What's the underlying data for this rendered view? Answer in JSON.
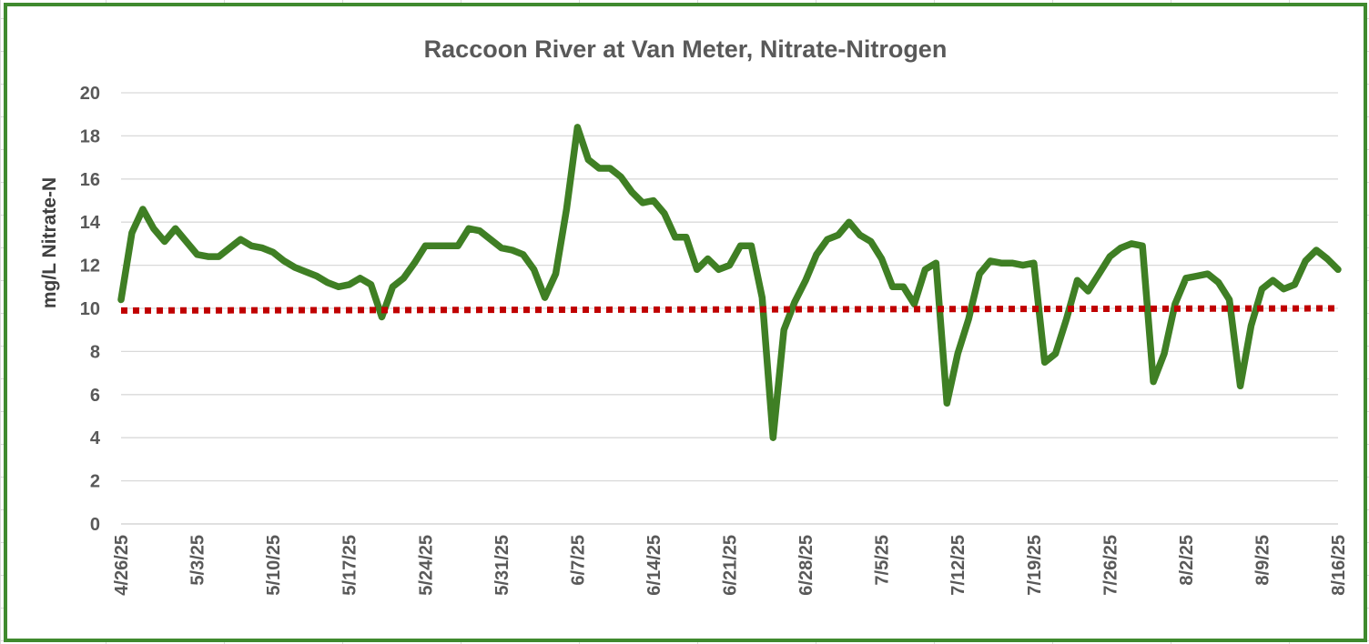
{
  "chart_data": {
    "type": "line",
    "title": "Raccoon River at Van Meter, Nitrate-Nitrogen",
    "xlabel": "",
    "ylabel": "mg/L Nitrate-N",
    "ylim": [
      0,
      20
    ],
    "yticks": [
      0,
      2,
      4,
      6,
      8,
      10,
      12,
      14,
      16,
      18,
      20
    ],
    "xlim": [
      "2025-04-26",
      "2025-08-16"
    ],
    "xtick_labels": [
      "4/26/25",
      "5/3/25",
      "5/10/25",
      "5/17/25",
      "5/24/25",
      "5/31/25",
      "6/7/25",
      "6/14/25",
      "6/21/25",
      "6/28/25",
      "7/5/25",
      "7/12/25",
      "7/19/25",
      "7/26/25",
      "8/2/25",
      "8/9/25",
      "8/16/25"
    ],
    "grid": "horizontal",
    "legend": "none",
    "series": [
      {
        "color": "#3f7f24",
        "style": "solid",
        "x": [
          "2025-04-26",
          "2025-04-27",
          "2025-04-28",
          "2025-04-29",
          "2025-04-30",
          "2025-05-01",
          "2025-05-02",
          "2025-05-03",
          "2025-05-04",
          "2025-05-05",
          "2025-05-06",
          "2025-05-07",
          "2025-05-08",
          "2025-05-09",
          "2025-05-10",
          "2025-05-11",
          "2025-05-12",
          "2025-05-13",
          "2025-05-14",
          "2025-05-15",
          "2025-05-16",
          "2025-05-17",
          "2025-05-18",
          "2025-05-19",
          "2025-05-20",
          "2025-05-21",
          "2025-05-22",
          "2025-05-23",
          "2025-05-24",
          "2025-05-25",
          "2025-05-26",
          "2025-05-27",
          "2025-05-28",
          "2025-05-29",
          "2025-05-30",
          "2025-05-31",
          "2025-06-01",
          "2025-06-02",
          "2025-06-03",
          "2025-06-04",
          "2025-06-05",
          "2025-06-06",
          "2025-06-07",
          "2025-06-08",
          "2025-06-09",
          "2025-06-10",
          "2025-06-11",
          "2025-06-12",
          "2025-06-13",
          "2025-06-14",
          "2025-06-15",
          "2025-06-16",
          "2025-06-17",
          "2025-06-18",
          "2025-06-19",
          "2025-06-20",
          "2025-06-21",
          "2025-06-22",
          "2025-06-23",
          "2025-06-24",
          "2025-06-25",
          "2025-06-26",
          "2025-06-27",
          "2025-06-28",
          "2025-06-29",
          "2025-06-30",
          "2025-07-01",
          "2025-07-02",
          "2025-07-03",
          "2025-07-04",
          "2025-07-05",
          "2025-07-06",
          "2025-07-07",
          "2025-07-08",
          "2025-07-09",
          "2025-07-10",
          "2025-07-11",
          "2025-07-12",
          "2025-07-13",
          "2025-07-14",
          "2025-07-15",
          "2025-07-16",
          "2025-07-17",
          "2025-07-18",
          "2025-07-19",
          "2025-07-20",
          "2025-07-21",
          "2025-07-22",
          "2025-07-23",
          "2025-07-24",
          "2025-07-25",
          "2025-07-26",
          "2025-07-27",
          "2025-07-28",
          "2025-07-29",
          "2025-07-30",
          "2025-07-31",
          "2025-08-01",
          "2025-08-02",
          "2025-08-03",
          "2025-08-04",
          "2025-08-05",
          "2025-08-06",
          "2025-08-07",
          "2025-08-08",
          "2025-08-09",
          "2025-08-10",
          "2025-08-11",
          "2025-08-12",
          "2025-08-13",
          "2025-08-14",
          "2025-08-15",
          "2025-08-16"
        ],
        "values": [
          10.4,
          13.5,
          14.6,
          13.7,
          13.1,
          13.7,
          13.1,
          12.5,
          12.4,
          12.4,
          12.8,
          13.2,
          12.9,
          12.8,
          12.6,
          12.2,
          11.9,
          11.7,
          11.5,
          11.2,
          11.0,
          11.1,
          11.4,
          11.1,
          9.6,
          11.0,
          11.4,
          12.1,
          12.9,
          12.9,
          12.9,
          12.9,
          13.7,
          13.6,
          13.2,
          12.8,
          12.7,
          12.5,
          11.8,
          10.5,
          11.6,
          14.6,
          18.4,
          16.9,
          16.5,
          16.5,
          16.1,
          15.4,
          14.9,
          15.0,
          14.4,
          13.3,
          13.3,
          11.8,
          12.3,
          11.8,
          12.0,
          12.9,
          12.9,
          10.5,
          4.0,
          9.0,
          10.3,
          11.3,
          12.5,
          13.2,
          13.4,
          14.0,
          13.4,
          13.1,
          12.3,
          11.0,
          11.0,
          10.2,
          11.8,
          12.1,
          5.6,
          7.9,
          9.5,
          11.6,
          12.2,
          12.1,
          12.1,
          12.0,
          12.1,
          7.5,
          7.9,
          9.5,
          11.3,
          10.8,
          11.6,
          12.4,
          12.8,
          13.0,
          12.9,
          6.6,
          7.9,
          10.2,
          11.4,
          11.5,
          11.6,
          11.2,
          10.4,
          6.4,
          9.2,
          10.9,
          11.3,
          10.9,
          11.1,
          12.2,
          12.7,
          12.3,
          11.8
        ]
      },
      {
        "color": "#c00000",
        "style": "dotted",
        "x": [
          "2025-04-26",
          "2025-08-16"
        ],
        "values": [
          9.9,
          10.0
        ]
      }
    ]
  }
}
